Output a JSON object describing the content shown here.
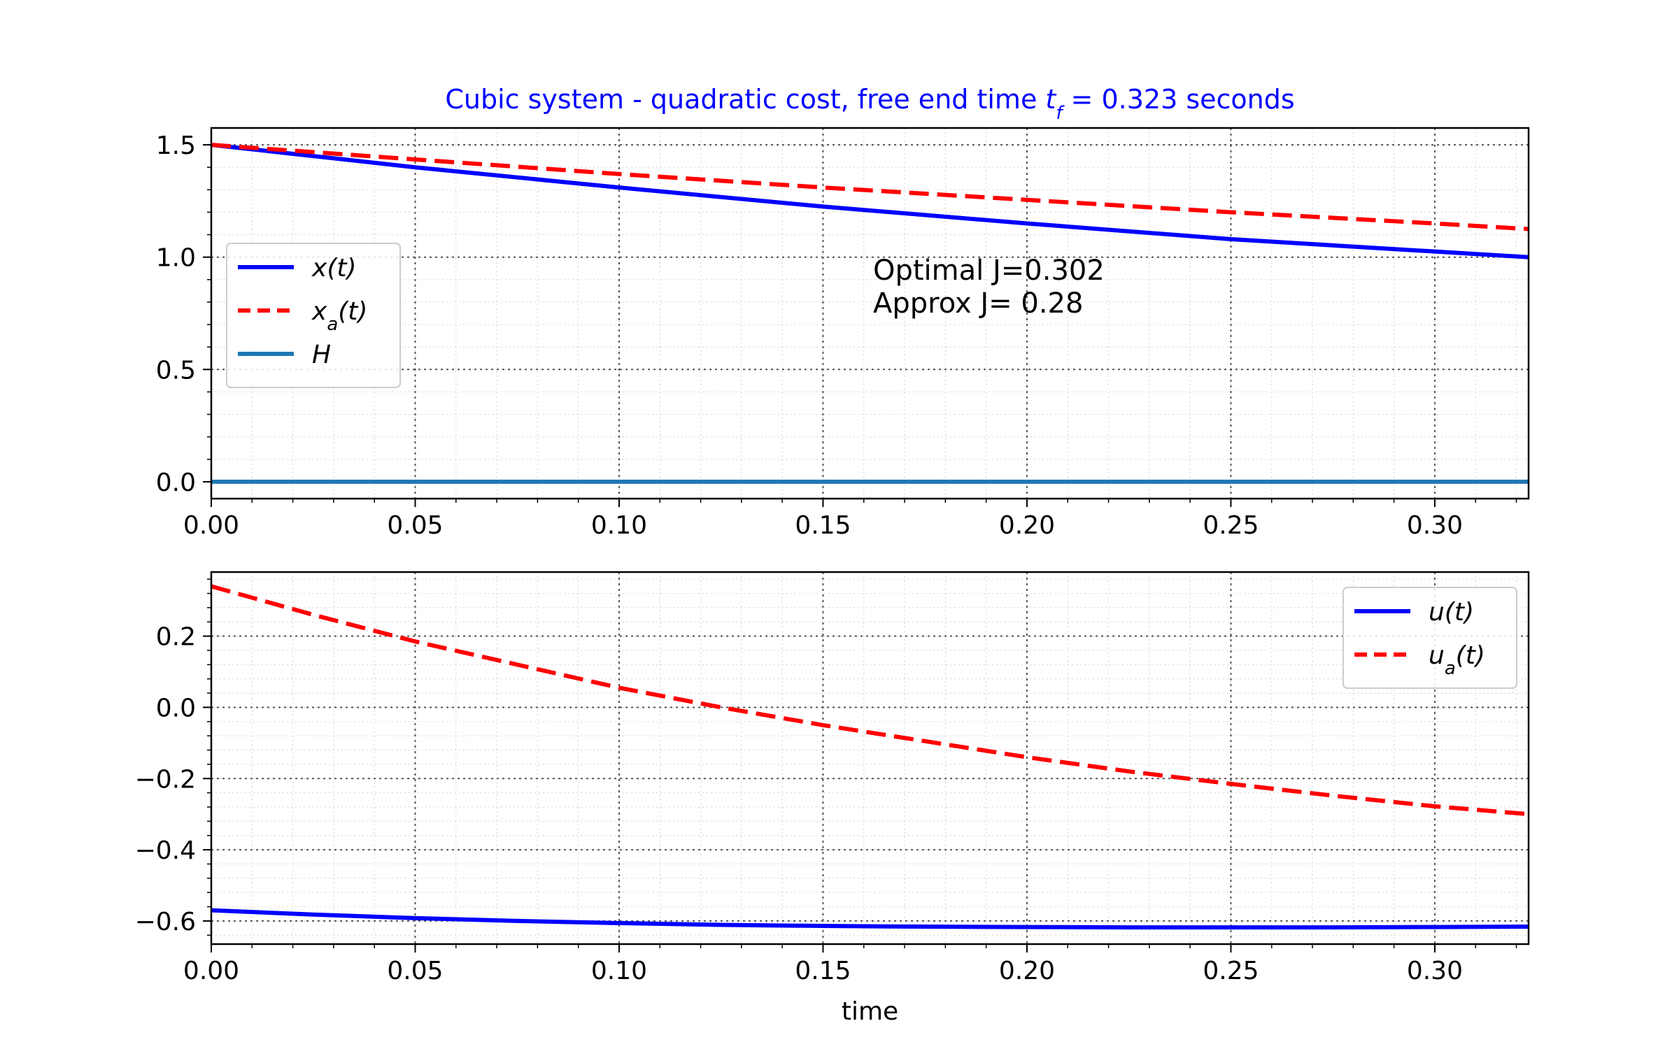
{
  "chart_data": [
    {
      "type": "line",
      "title": "Cubic system - quadratic cost, free end time t_f = 0.323 seconds",
      "title_parts": {
        "prefix": "Cubic system - quadratic cost, free end time ",
        "var": "t",
        "sub": "f",
        "suffix": " = 0.323 seconds"
      },
      "title_color": "#0000ff",
      "xlabel": "",
      "ylabel": "",
      "xlim": [
        0.0,
        0.323
      ],
      "ylim": [
        -0.075,
        1.575
      ],
      "xticks": [
        "0.00",
        "0.05",
        "0.10",
        "0.15",
        "0.20",
        "0.25",
        "0.30"
      ],
      "xtick_values": [
        0.0,
        0.05,
        0.1,
        0.15,
        0.2,
        0.25,
        0.3
      ],
      "yticks": [
        "0.0",
        "0.5",
        "1.0",
        "1.5"
      ],
      "ytick_values": [
        0.0,
        0.5,
        1.0,
        1.5
      ],
      "grid": true,
      "legend_position": "center-left",
      "annotations": [
        "Optimal J=0.302",
        "Approx  J= 0.28"
      ],
      "x": [
        0.0,
        0.05,
        0.1,
        0.15,
        0.2,
        0.25,
        0.3,
        0.323
      ],
      "series": [
        {
          "name": "x(t)",
          "name_parts": {
            "var": "x",
            "sub": "",
            "arg": "(t)"
          },
          "style": "solid",
          "color": "#0000ff",
          "values": [
            1.5,
            1.4,
            1.31,
            1.225,
            1.15,
            1.08,
            1.025,
            1.0
          ]
        },
        {
          "name": "x_a(t)",
          "name_parts": {
            "var": "x",
            "sub": "a",
            "arg": "(t)"
          },
          "style": "dashed",
          "color": "#ff0000",
          "values": [
            1.5,
            1.435,
            1.37,
            1.31,
            1.255,
            1.2,
            1.15,
            1.125
          ]
        },
        {
          "name": "H",
          "name_parts": {
            "var": "H",
            "sub": "",
            "arg": ""
          },
          "style": "solid",
          "color": "#1f77b4",
          "values": [
            0.0,
            0.0,
            0.0,
            0.0,
            0.0,
            0.0,
            0.0,
            0.0
          ]
        }
      ]
    },
    {
      "type": "line",
      "xlabel": "time",
      "ylabel": "",
      "xlim": [
        0.0,
        0.323
      ],
      "ylim": [
        -0.665,
        0.38
      ],
      "xticks": [
        "0.00",
        "0.05",
        "0.10",
        "0.15",
        "0.20",
        "0.25",
        "0.30"
      ],
      "xtick_values": [
        0.0,
        0.05,
        0.1,
        0.15,
        0.2,
        0.25,
        0.3
      ],
      "yticks": [
        "−0.6",
        "−0.4",
        "−0.2",
        "0.0",
        "0.2"
      ],
      "ytick_values": [
        -0.6,
        -0.4,
        -0.2,
        0.0,
        0.2
      ],
      "grid": true,
      "legend_position": "top-right",
      "x": [
        0.0,
        0.025,
        0.05,
        0.075,
        0.1,
        0.125,
        0.15,
        0.175,
        0.2,
        0.225,
        0.25,
        0.275,
        0.3,
        0.323
      ],
      "series": [
        {
          "name": "u(t)",
          "name_parts": {
            "var": "u",
            "sub": "",
            "arg": "(t)"
          },
          "style": "solid",
          "color": "#0000ff",
          "values": [
            -0.57,
            -0.582,
            -0.592,
            -0.6,
            -0.606,
            -0.611,
            -0.614,
            -0.616,
            -0.617,
            -0.618,
            -0.618,
            -0.618,
            -0.617,
            -0.616
          ]
        },
        {
          "name": "u_a(t)",
          "name_parts": {
            "var": "u",
            "sub": "a",
            "arg": "(t)"
          },
          "style": "dashed",
          "color": "#ff0000",
          "values": [
            0.34,
            0.26,
            0.185,
            0.12,
            0.055,
            0.0,
            -0.05,
            -0.095,
            -0.14,
            -0.18,
            -0.215,
            -0.248,
            -0.278,
            -0.3
          ]
        }
      ]
    }
  ]
}
